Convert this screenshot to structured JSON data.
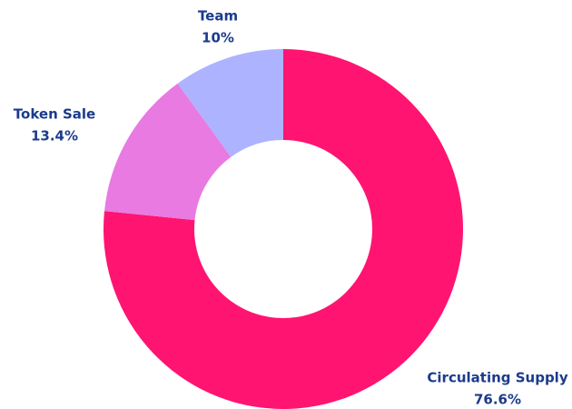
{
  "chart_data": {
    "type": "donut",
    "categories": [
      "Circulating Supply",
      "Token Sale",
      "Team"
    ],
    "values": [
      76.6,
      13.4,
      10
    ],
    "value_labels": [
      "76.6%",
      "13.4%",
      "10%"
    ],
    "colors": [
      "#ff1471",
      "#e87ae2",
      "#adb3ff"
    ]
  }
}
